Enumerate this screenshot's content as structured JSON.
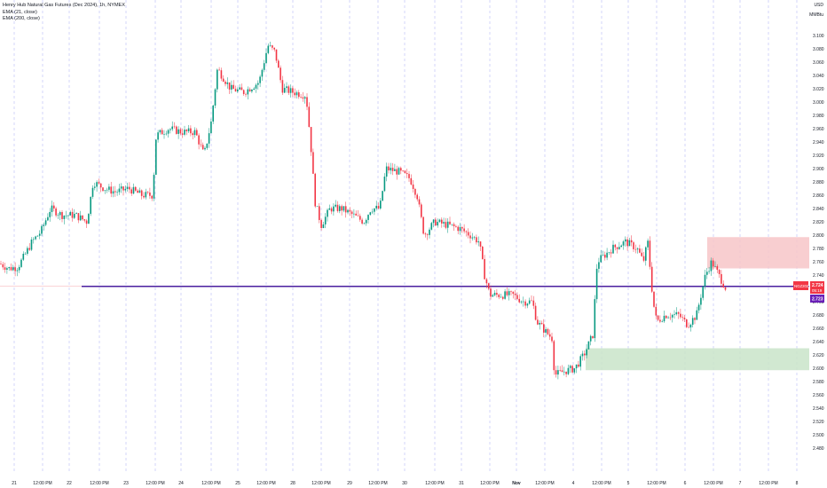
{
  "legend": {
    "title": "Henry Hub Natural Gas Futures (Dec 2024), 1h, NYMEX",
    "ema_fast": "EMA (21, close)",
    "ema_slow": "EMA (200, close)"
  },
  "axis": {
    "currency": "USD",
    "unit": "MMBtu",
    "yticks": [
      "3.100",
      "3.080",
      "3.060",
      "3.040",
      "3.020",
      "3.000",
      "2.980",
      "2.960",
      "2.940",
      "2.920",
      "2.900",
      "2.880",
      "2.860",
      "2.840",
      "2.820",
      "2.800",
      "2.780",
      "2.760",
      "2.740",
      "2.720",
      "2.700",
      "2.680",
      "2.660",
      "2.640",
      "2.620",
      "2.600",
      "2.580",
      "2.560",
      "2.540",
      "2.520",
      "2.500",
      "2.480"
    ],
    "xticks": [
      {
        "label": "21",
        "x": 16,
        "bold": false
      },
      {
        "label": "12:00 PM",
        "x": 48,
        "bold": false
      },
      {
        "label": "22",
        "x": 78,
        "bold": false
      },
      {
        "label": "12:00 PM",
        "x": 112,
        "bold": false
      },
      {
        "label": "23",
        "x": 142,
        "bold": false
      },
      {
        "label": "12:00 PM",
        "x": 175,
        "bold": false
      },
      {
        "label": "24",
        "x": 204,
        "bold": false
      },
      {
        "label": "12:00 PM",
        "x": 238,
        "bold": false
      },
      {
        "label": "25",
        "x": 268,
        "bold": false
      },
      {
        "label": "12:00 PM",
        "x": 300,
        "bold": false
      },
      {
        "label": "28",
        "x": 330,
        "bold": false
      },
      {
        "label": "12:00 PM",
        "x": 362,
        "bold": false
      },
      {
        "label": "29",
        "x": 394,
        "bold": false
      },
      {
        "label": "12:00 PM",
        "x": 426,
        "bold": false
      },
      {
        "label": "30",
        "x": 456,
        "bold": false
      },
      {
        "label": "12:00 PM",
        "x": 490,
        "bold": false
      },
      {
        "label": "31",
        "x": 520,
        "bold": false
      },
      {
        "label": "12:00 PM",
        "x": 552,
        "bold": false
      },
      {
        "label": "Nov",
        "x": 582,
        "bold": true
      },
      {
        "label": "12:00 PM",
        "x": 614,
        "bold": false
      },
      {
        "label": "4",
        "x": 646,
        "bold": false
      },
      {
        "label": "12:00 PM",
        "x": 678,
        "bold": false
      },
      {
        "label": "5",
        "x": 708,
        "bold": false
      },
      {
        "label": "12:00 PM",
        "x": 740,
        "bold": false
      },
      {
        "label": "6",
        "x": 772,
        "bold": false
      },
      {
        "label": "12:00 PM",
        "x": 804,
        "bold": false
      },
      {
        "label": "7",
        "x": 834,
        "bold": false
      },
      {
        "label": "12:00 PM",
        "x": 866,
        "bold": false
      },
      {
        "label": "8",
        "x": 898,
        "bold": false
      }
    ]
  },
  "labels": {
    "symbol_tag": "NGZ2024",
    "last_price": "2.724",
    "countdown": "05:19",
    "level_price": "2.723"
  },
  "colors": {
    "up": "#089981",
    "down": "#f23645",
    "line": "#4a1f9f",
    "supply_zone": "#f7c5c8",
    "demand_zone": "#c9e4c9",
    "grid": "#b6b9f5",
    "level_label": "#6a1fb7"
  },
  "chart_data": {
    "type": "candlestick",
    "title": "Henry Hub Natural Gas Futures (Dec 2024), 1h, NYMEX",
    "ylim": [
      2.47,
      3.12
    ],
    "horizontal_line": 2.723,
    "last_price": 2.724,
    "zones": [
      {
        "type": "supply",
        "from_x": 797,
        "to_x": 912,
        "y_low": 2.75,
        "y_high": 2.797
      },
      {
        "type": "demand",
        "from_x": 660,
        "to_x": 912,
        "y_low": 2.597,
        "y_high": 2.63
      }
    ],
    "anchors": [
      [
        0,
        2.757
      ],
      [
        10,
        2.75
      ],
      [
        20,
        2.752
      ],
      [
        28,
        2.77
      ],
      [
        36,
        2.79
      ],
      [
        46,
        2.805
      ],
      [
        57,
        2.84
      ],
      [
        70,
        2.83
      ],
      [
        85,
        2.83
      ],
      [
        98,
        2.82
      ],
      [
        105,
        2.88
      ],
      [
        118,
        2.87
      ],
      [
        130,
        2.865
      ],
      [
        145,
        2.87
      ],
      [
        160,
        2.86
      ],
      [
        172,
        2.86
      ],
      [
        176,
        2.95
      ],
      [
        190,
        2.96
      ],
      [
        205,
        2.955
      ],
      [
        220,
        2.955
      ],
      [
        230,
        2.92
      ],
      [
        238,
        2.97
      ],
      [
        245,
        3.05
      ],
      [
        260,
        3.02
      ],
      [
        275,
        3.015
      ],
      [
        292,
        3.03
      ],
      [
        302,
        3.085
      ],
      [
        310,
        3.075
      ],
      [
        318,
        3.02
      ],
      [
        330,
        3.015
      ],
      [
        345,
        3.01
      ],
      [
        350,
        2.94
      ],
      [
        355,
        2.85
      ],
      [
        362,
        2.815
      ],
      [
        372,
        2.84
      ],
      [
        385,
        2.84
      ],
      [
        398,
        2.83
      ],
      [
        410,
        2.82
      ],
      [
        418,
        2.84
      ],
      [
        428,
        2.84
      ],
      [
        435,
        2.9
      ],
      [
        450,
        2.895
      ],
      [
        462,
        2.885
      ],
      [
        470,
        2.86
      ],
      [
        478,
        2.8
      ],
      [
        490,
        2.82
      ],
      [
        505,
        2.815
      ],
      [
        518,
        2.81
      ],
      [
        530,
        2.8
      ],
      [
        540,
        2.79
      ],
      [
        546,
        2.74
      ],
      [
        552,
        2.71
      ],
      [
        565,
        2.71
      ],
      [
        578,
        2.71
      ],
      [
        590,
        2.7
      ],
      [
        600,
        2.7
      ],
      [
        605,
        2.67
      ],
      [
        615,
        2.655
      ],
      [
        622,
        2.645
      ],
      [
        625,
        2.59
      ],
      [
        635,
        2.595
      ],
      [
        648,
        2.6
      ],
      [
        658,
        2.62
      ],
      [
        668,
        2.65
      ],
      [
        673,
        2.76
      ],
      [
        690,
        2.78
      ],
      [
        705,
        2.79
      ],
      [
        718,
        2.78
      ],
      [
        725,
        2.76
      ],
      [
        730,
        2.79
      ],
      [
        736,
        2.7
      ],
      [
        740,
        2.67
      ],
      [
        750,
        2.68
      ],
      [
        765,
        2.68
      ],
      [
        775,
        2.665
      ],
      [
        785,
        2.68
      ],
      [
        795,
        2.74
      ],
      [
        802,
        2.76
      ],
      [
        810,
        2.74
      ],
      [
        818,
        2.72
      ]
    ]
  }
}
